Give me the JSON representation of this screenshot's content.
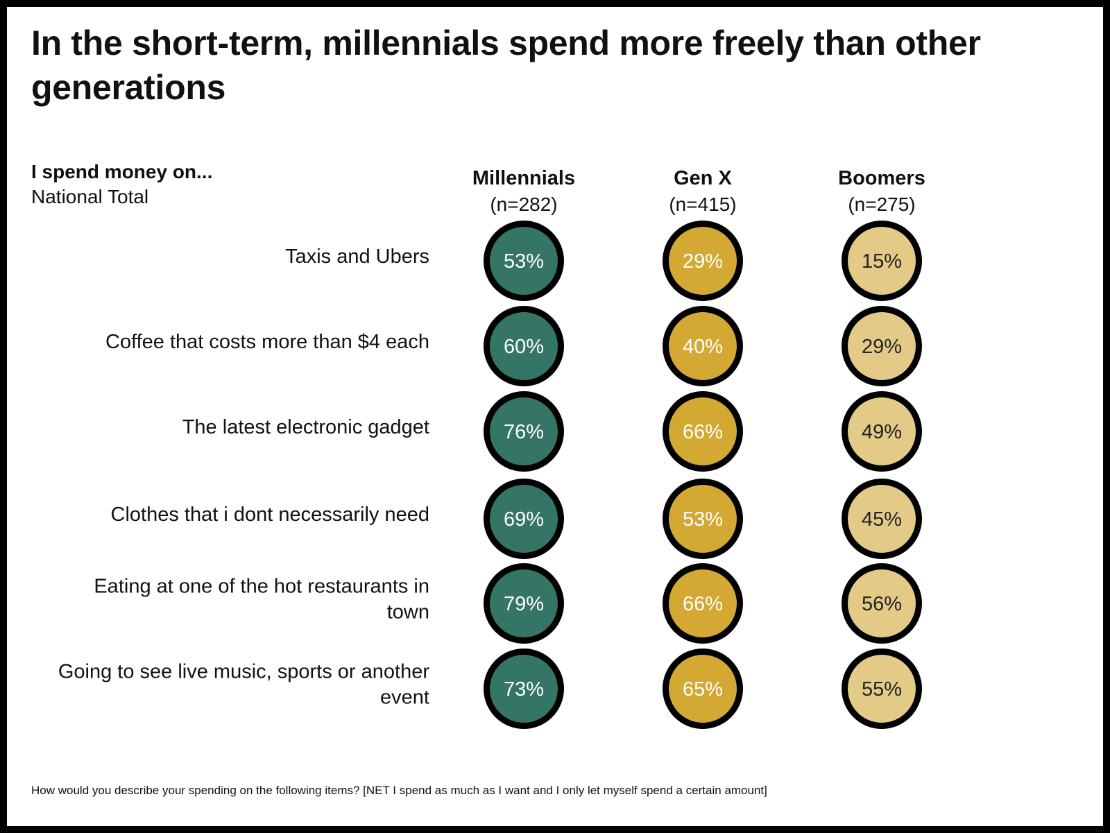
{
  "title": "In the short-term, millennials spend more freely than other generations",
  "subtitle": "I spend money on...",
  "subtitle_secondary": "National Total",
  "footnote": "How would you describe your spending on the following items? [NET I spend as much as I want and I only let myself spend a certain amount]",
  "chart_data": {
    "type": "table",
    "title": "In the short-term, millennials spend more freely than other generations",
    "categories": [
      [
        "Taxis and Ubers"
      ],
      [
        "Coffee that costs more than $4 each"
      ],
      [
        "The latest electronic gadget"
      ],
      [
        "Clothes that i dont necessarily need"
      ],
      [
        "Eating at one of the hot restaurants in",
        "town"
      ],
      [
        "Going to see live music, sports or another",
        "event"
      ]
    ],
    "series": [
      {
        "name": "Millennials",
        "n": "(n=282)",
        "color": "#357566",
        "text_color": "#ffffff",
        "values": [
          53,
          60,
          76,
          69,
          79,
          73
        ]
      },
      {
        "name": "Gen X",
        "n": "(n=415)",
        "color": "#d3a833",
        "text_color": "#ffffff",
        "values": [
          29,
          40,
          66,
          53,
          66,
          65
        ]
      },
      {
        "name": "Boomers",
        "n": "(n=275)",
        "color": "#e3cb87",
        "text_color": "#222222",
        "values": [
          15,
          29,
          49,
          45,
          56,
          55
        ]
      }
    ],
    "value_suffix": "%"
  }
}
